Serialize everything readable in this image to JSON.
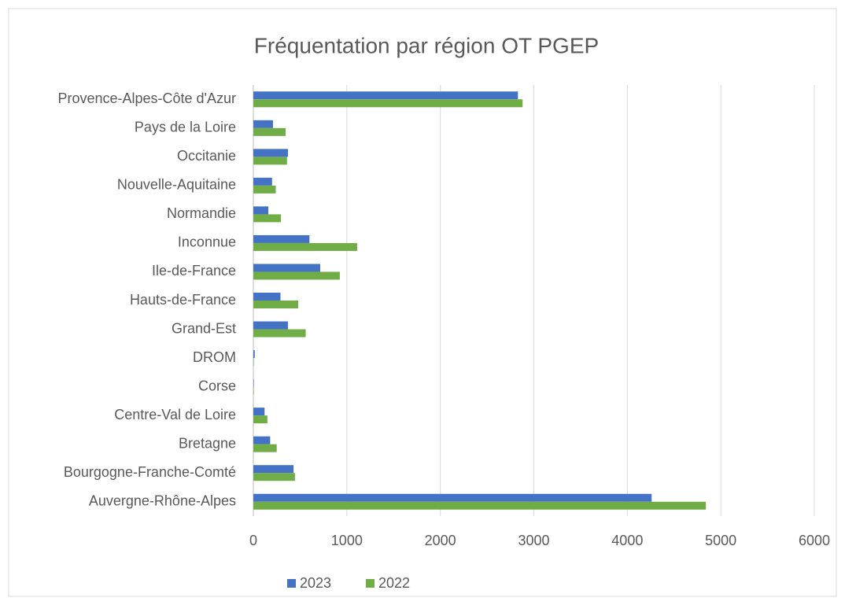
{
  "chart_data": {
    "type": "hbar",
    "title": "Fréquentation par région OT PGEP",
    "categories": [
      "Auvergne-Rhône-Alpes",
      "Bourgogne-Franche-Comté",
      "Bretagne",
      "Centre-Val de Loire",
      "Corse",
      "DROM",
      "Grand-Est",
      "Hauts-de-France",
      "Ile-de-France",
      "Inconnue",
      "Normandie",
      "Nouvelle-Aquitaine",
      "Occitanie",
      "Pays de la Loire",
      "Provence-Alpes-Côte d'Azur"
    ],
    "series": [
      {
        "name": "2023",
        "color": "#4472c4",
        "values": [
          4260,
          430,
          180,
          120,
          5,
          15,
          370,
          290,
          715,
          600,
          160,
          200,
          370,
          210,
          2830
        ]
      },
      {
        "name": "2022",
        "color": "#70ad47",
        "values": [
          4840,
          445,
          250,
          150,
          5,
          5,
          560,
          480,
          925,
          1110,
          295,
          240,
          360,
          345,
          2880
        ]
      }
    ],
    "xlim": [
      0,
      6000
    ],
    "xticks": [
      0,
      1000,
      2000,
      3000,
      4000,
      5000,
      6000
    ],
    "grid": true,
    "legend": "bottom"
  }
}
